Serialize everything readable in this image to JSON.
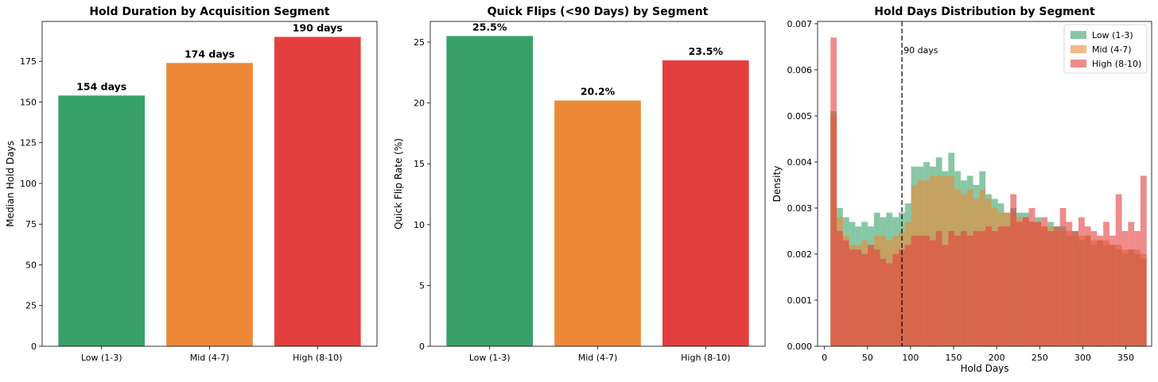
{
  "chart_data": [
    {
      "type": "bar",
      "title": "Hold Duration by Acquisition Segment",
      "xlabel": "",
      "ylabel": "Median Hold Days",
      "categories": [
        "Low (1-3)",
        "Mid (4-7)",
        "High (8-10)"
      ],
      "values": [
        154,
        174,
        190
      ],
      "data_labels": [
        "154 days",
        "174 days",
        "190 days"
      ],
      "colors": [
        "#38a169",
        "#ed8936",
        "#e53e3e"
      ],
      "ylim": [
        0,
        199.5
      ],
      "yticks": [
        0,
        25,
        50,
        75,
        100,
        125,
        150,
        175
      ],
      "grid": false
    },
    {
      "type": "bar",
      "title": "Quick Flips (<90 Days) by Segment",
      "xlabel": "",
      "ylabel": "Quick Flip Rate (%)",
      "categories": [
        "Low (1-3)",
        "Mid (4-7)",
        "High (8-10)"
      ],
      "values": [
        25.5,
        20.2,
        23.5
      ],
      "data_labels": [
        "25.5%",
        "20.2%",
        "23.5%"
      ],
      "colors": [
        "#38a169",
        "#ed8936",
        "#e53e3e"
      ],
      "ylim": [
        0,
        26.7
      ],
      "yticks": [
        0,
        5,
        10,
        15,
        20,
        25
      ],
      "grid": false
    },
    {
      "type": "histogram",
      "title": "Hold Days Distribution by Segment",
      "xlabel": "Hold Days",
      "ylabel": "Density",
      "xlim": [
        -8,
        380
      ],
      "ylim": [
        0,
        0.00705
      ],
      "xticks": [
        0,
        50,
        100,
        150,
        200,
        250,
        300,
        350
      ],
      "yticks": [
        "0.000",
        "0.001",
        "0.002",
        "0.003",
        "0.004",
        "0.005",
        "0.006",
        "0.007"
      ],
      "bin_start": 7,
      "bin_width": 7.2,
      "legend_position": "top-right",
      "grid": false,
      "reference_line": {
        "x": 90,
        "label": "90 days",
        "style": "dashed",
        "color": "#000000"
      },
      "series": [
        {
          "name": "Low (1-3)",
          "color": "#38a169",
          "opacity": 0.6,
          "values": [
            0.0051,
            0.003,
            0.0028,
            0.0027,
            0.0026,
            0.0027,
            0.0026,
            0.0029,
            0.0028,
            0.0029,
            0.0028,
            0.0029,
            0.0031,
            0.0039,
            0.0039,
            0.004,
            0.0039,
            0.0041,
            0.0038,
            0.0042,
            0.0038,
            0.0036,
            0.0037,
            0.0035,
            0.0038,
            0.0033,
            0.0032,
            0.0031,
            0.0029,
            0.003,
            0.0029,
            0.0029,
            0.0027,
            0.0028,
            0.0026,
            0.0027,
            0.0026,
            0.0026,
            0.0024,
            0.0025,
            0.0023,
            0.0024,
            0.0022,
            0.0023,
            0.0022,
            0.0022,
            0.0021,
            0.002,
            0.0021,
            0.002,
            0.0019
          ]
        },
        {
          "name": "Mid (4-7)",
          "color": "#ed8936",
          "opacity": 0.6,
          "values": [
            0.005,
            0.0028,
            0.0024,
            0.0022,
            0.0022,
            0.0023,
            0.0022,
            0.0024,
            0.0024,
            0.0023,
            0.0024,
            0.0025,
            0.0027,
            0.0035,
            0.0036,
            0.0036,
            0.0037,
            0.0037,
            0.0037,
            0.0037,
            0.0034,
            0.0033,
            0.0034,
            0.0032,
            0.0034,
            0.0032,
            0.003,
            0.0029,
            0.0029,
            0.0029,
            0.0028,
            0.0028,
            0.0027,
            0.0027,
            0.0026,
            0.0026,
            0.0025,
            0.0025,
            0.0025,
            0.0024,
            0.0024,
            0.0024,
            0.0023,
            0.0023,
            0.0023,
            0.0022,
            0.0022,
            0.0021,
            0.0021,
            0.0021,
            0.002
          ]
        },
        {
          "name": "High (8-10)",
          "color": "#e53e3e",
          "opacity": 0.6,
          "values": [
            0.0067,
            0.0025,
            0.0023,
            0.0021,
            0.0021,
            0.002,
            0.0022,
            0.0021,
            0.0019,
            0.0018,
            0.002,
            0.0021,
            0.0022,
            0.0024,
            0.0024,
            0.0024,
            0.0023,
            0.0025,
            0.0022,
            0.0025,
            0.0024,
            0.0025,
            0.0024,
            0.0025,
            0.0025,
            0.0026,
            0.0025,
            0.0026,
            0.0026,
            0.0033,
            0.0027,
            0.0028,
            0.003,
            0.0027,
            0.0028,
            0.0025,
            0.0026,
            0.003,
            0.0027,
            0.0025,
            0.0028,
            0.0026,
            0.0025,
            0.0024,
            0.0027,
            0.0024,
            0.0033,
            0.0025,
            0.0027,
            0.0025,
            0.0037
          ]
        }
      ]
    }
  ]
}
